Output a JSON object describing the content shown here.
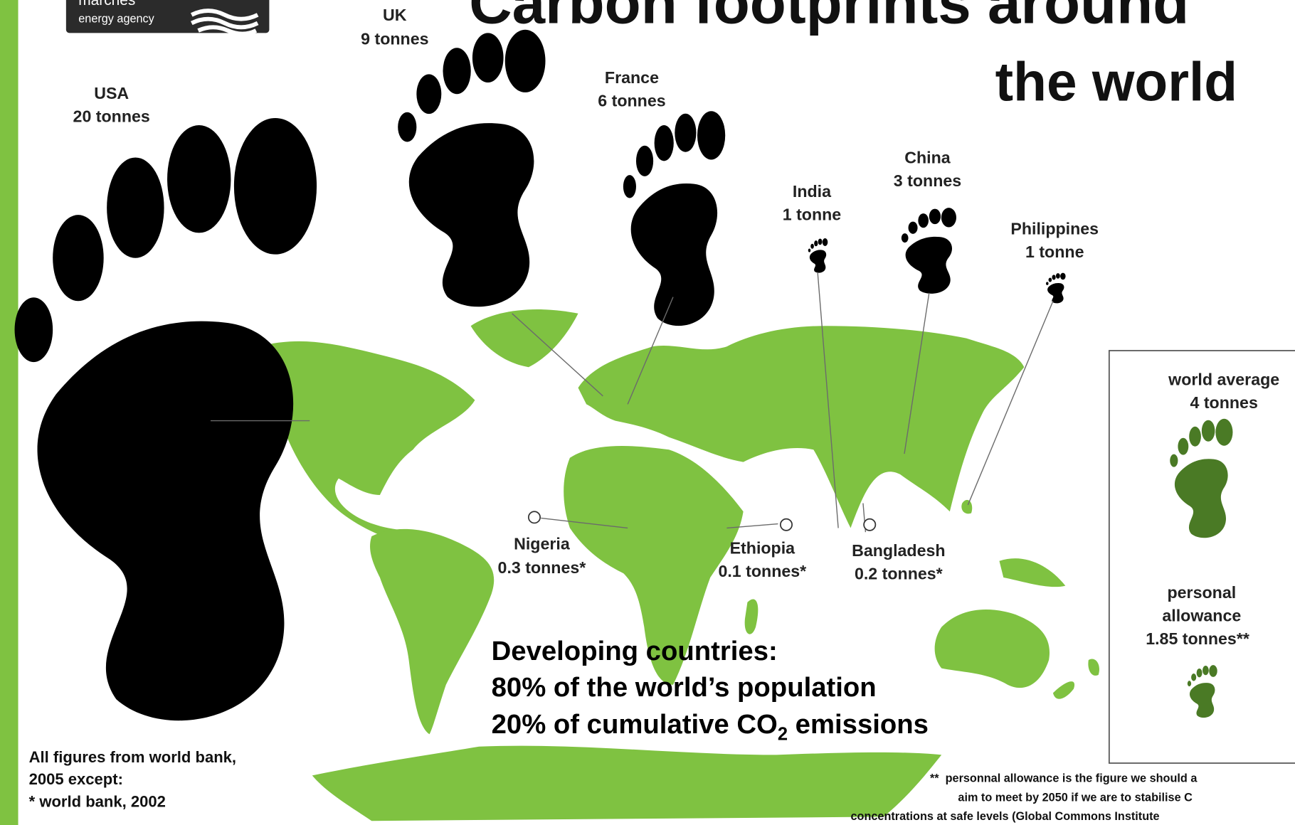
{
  "logo": {
    "name": "marches",
    "tagline": "energy agency"
  },
  "title": [
    "Carbon footprints around",
    "the world"
  ],
  "countries": [
    {
      "name": "USA",
      "amount": "20 tonnes"
    },
    {
      "name": "UK",
      "amount": "9 tonnes"
    },
    {
      "name": "France",
      "amount": "6 tonnes"
    },
    {
      "name": "India",
      "amount": "1 tonne"
    },
    {
      "name": "China",
      "amount": "3 tonnes"
    },
    {
      "name": "Philippines",
      "amount": "1 tonne"
    },
    {
      "name": "Nigeria",
      "amount": "0.3 tonnes*"
    },
    {
      "name": "Ethiopia",
      "amount": "0.1 tonnes*"
    },
    {
      "name": "Bangladesh",
      "amount": "0.2 tonnes*"
    }
  ],
  "legend": {
    "average": {
      "label": [
        "world average"
      ],
      "amount": "4 tonnes"
    },
    "allowance": {
      "label": [
        "personal",
        "allowance"
      ],
      "amount": "1.85 tonnes**"
    }
  },
  "callout": {
    "lines": [
      "Developing countries:",
      "80% of the world’s population"
    ],
    "last": [
      "20% of cumulative CO",
      "2",
      " emissions"
    ]
  },
  "source": [
    "All figures from world bank,",
    "2005 except:",
    "* world bank, 2002"
  ],
  "footnote": [
    "**  personnal allowance is the figure we should a",
    "aim to meet by 2050 if we are to stabilise C",
    "concentrations at safe levels (Global Commons Institute"
  ]
}
